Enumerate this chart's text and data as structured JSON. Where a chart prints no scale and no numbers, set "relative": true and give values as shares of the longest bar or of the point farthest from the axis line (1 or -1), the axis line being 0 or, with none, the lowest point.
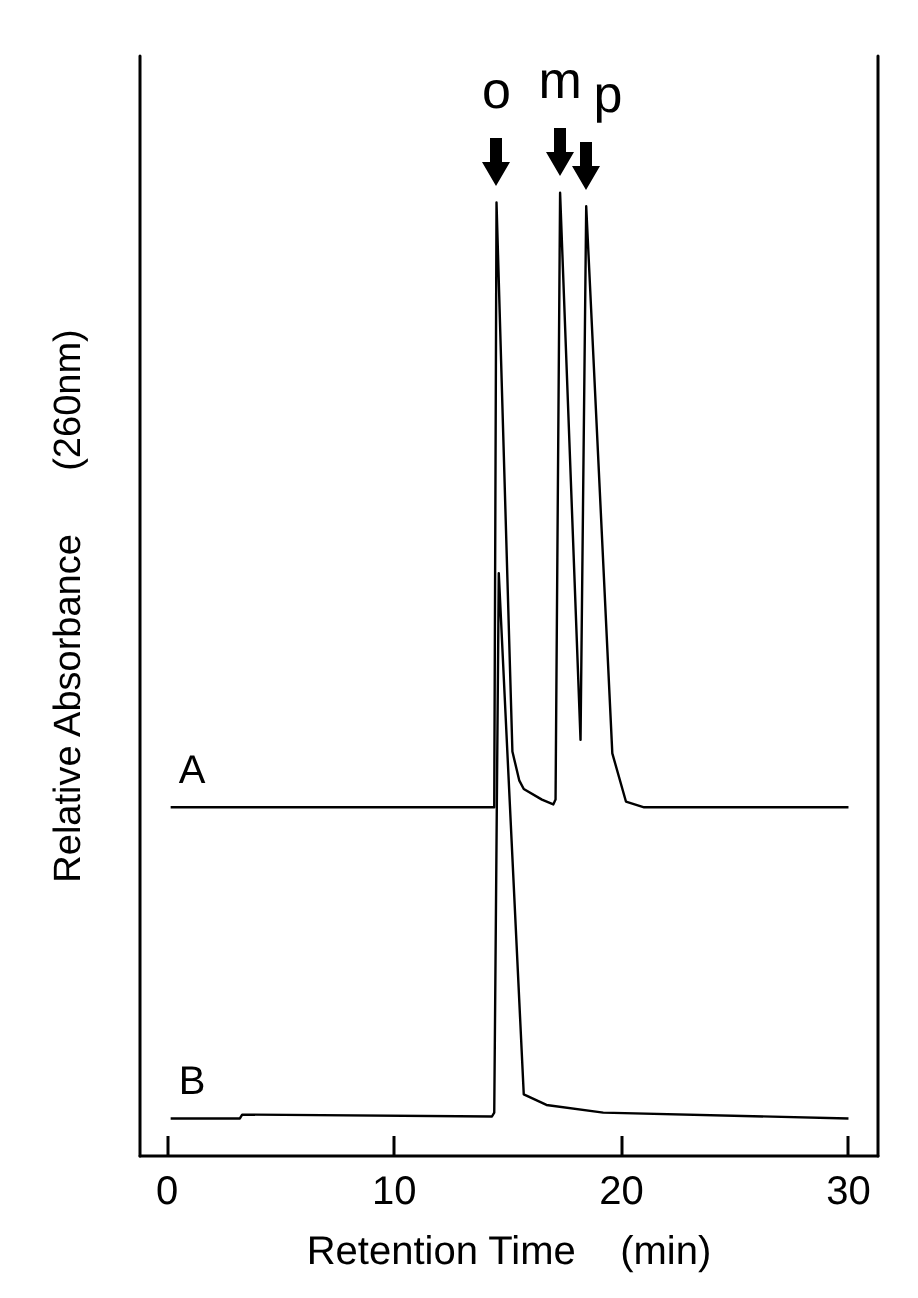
{
  "chart_data": {
    "type": "line",
    "relative": true,
    "xlabel": "Retention Time    (min)",
    "ylabel": "Relative Absorbance      (260nm)",
    "xlim": [
      -1.2,
      31.3
    ],
    "xticks": [
      0,
      10,
      20,
      30
    ],
    "marker": "none",
    "grid": false,
    "legend": false,
    "series": [
      {
        "name": "A",
        "color": "#000000",
        "x": [
          0.15,
          14.4,
          14.5,
          15.2,
          15.5,
          15.7,
          16.5,
          17.0,
          17.1,
          17.3,
          18.2,
          18.45,
          19.6,
          20.2,
          21.0,
          30.0
        ],
        "values": [
          0.362,
          0.362,
          0.99,
          0.42,
          0.39,
          0.381,
          0.37,
          0.365,
          0.37,
          1.0,
          0.432,
          0.986,
          0.418,
          0.368,
          0.362,
          0.362
        ]
      },
      {
        "name": "B",
        "color": "#000000",
        "x": [
          0.15,
          3.2,
          3.3,
          14.3,
          14.4,
          14.6,
          15.7,
          16.7,
          19.2,
          30.0
        ],
        "values": [
          0.039,
          0.039,
          0.043,
          0.041,
          0.045,
          0.605,
          0.064,
          0.053,
          0.045,
          0.039
        ]
      }
    ],
    "annotations": [
      {
        "text": "o",
        "x": 14.5,
        "y": 0.99
      },
      {
        "text": "m",
        "x": 17.3,
        "y": 1.0
      },
      {
        "text": "p",
        "x": 18.45,
        "y": 0.986
      }
    ]
  }
}
